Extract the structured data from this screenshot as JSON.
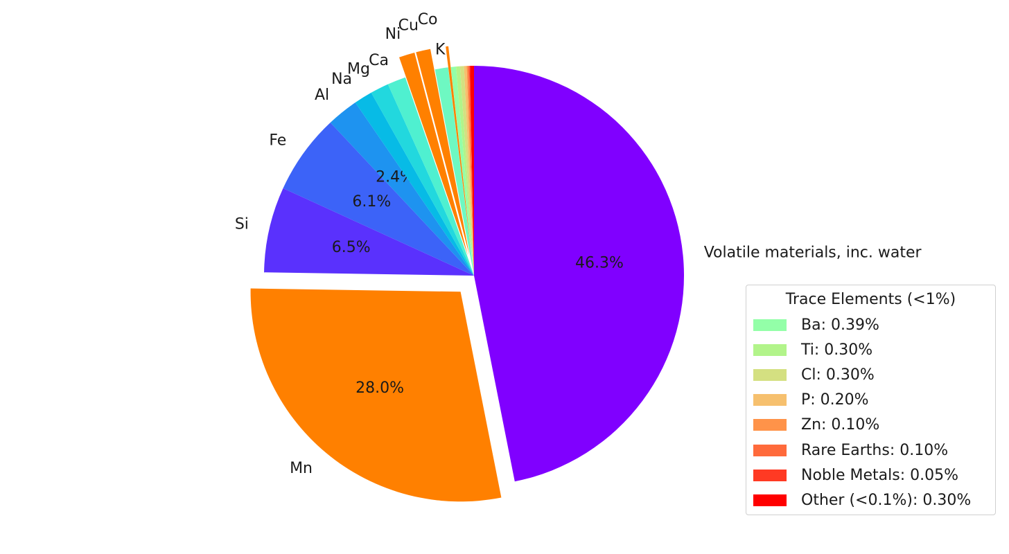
{
  "chart_data": {
    "type": "pie",
    "title": "",
    "start_angle_deg": 90,
    "direction": "clockwise",
    "slices": [
      {
        "label": "Volatile materials, inc. water",
        "value": 46.3,
        "pct_text": "46.3%",
        "color": "#8000ff",
        "explode": false
      },
      {
        "label": "Mn",
        "value": 28.0,
        "pct_text": "28.0%",
        "color": "#ff8000",
        "explode": true
      },
      {
        "label": "Si",
        "value": 6.5,
        "pct_text": "6.5%",
        "color": "#5a31fd",
        "explode": false
      },
      {
        "label": "Fe",
        "value": 6.1,
        "pct_text": "6.1%",
        "color": "#3c63f8",
        "explode": false
      },
      {
        "label": "Al",
        "value": 2.4,
        "pct_text": "2.4%",
        "color": "#1e93f0",
        "explode": false
      },
      {
        "label": "Na",
        "value": 1.4,
        "pct_text": "",
        "color": "#07bbe6",
        "explode": false
      },
      {
        "label": "Mg",
        "value": 1.4,
        "pct_text": "",
        "color": "#22d8de",
        "explode": false
      },
      {
        "label": "Ca",
        "value": 1.4,
        "pct_text": "",
        "color": "#4ff0d0",
        "explode": false
      },
      {
        "label": "Ni",
        "value": 1.2,
        "pct_text": "",
        "color": "#ff8000",
        "explode": true
      },
      {
        "label": "Cu",
        "value": 1.1,
        "pct_text": "",
        "color": "#ff8000",
        "explode": true
      },
      {
        "label": "K",
        "value": 1.0,
        "pct_text": "",
        "color": "#6ef8c2",
        "explode": false
      },
      {
        "label": "Co",
        "value": 0.2,
        "pct_text": "",
        "color": "#ff8000",
        "explode": true
      },
      {
        "label": "Ba",
        "value": 0.39,
        "pct_text": "",
        "color": "#93ffa8",
        "explode": false
      },
      {
        "label": "Ti",
        "value": 0.3,
        "pct_text": "",
        "color": "#b2f48a",
        "explode": false
      },
      {
        "label": "Cl",
        "value": 0.3,
        "pct_text": "",
        "color": "#d4e081",
        "explode": false
      },
      {
        "label": "P",
        "value": 0.2,
        "pct_text": "",
        "color": "#f6c06e",
        "explode": false
      },
      {
        "label": "Zn",
        "value": 0.1,
        "pct_text": "",
        "color": "#ff9349",
        "explode": false
      },
      {
        "label": "Rare Earths",
        "value": 0.1,
        "pct_text": "",
        "color": "#ff6a3b",
        "explode": false
      },
      {
        "label": "Noble Metals",
        "value": 0.05,
        "pct_text": "",
        "color": "#ff3a23",
        "explode": false
      },
      {
        "label": "Other (<0.1%)",
        "value": 0.3,
        "pct_text": "",
        "color": "#ff0000",
        "explode": false
      }
    ],
    "legend": {
      "title": "Trace Elements (<1%)",
      "placement": "lower-right",
      "entries": [
        {
          "label": "Ba: 0.39%",
          "color": "#93ffa8"
        },
        {
          "label": "Ti: 0.30%",
          "color": "#b2f48a"
        },
        {
          "label": "Cl: 0.30%",
          "color": "#d4e081"
        },
        {
          "label": "P: 0.20%",
          "color": "#f6c06e"
        },
        {
          "label": "Zn: 0.10%",
          "color": "#ff9349"
        },
        {
          "label": "Rare Earths: 0.10%",
          "color": "#ff6a3b"
        },
        {
          "label": "Noble Metals: 0.05%",
          "color": "#ff3a23"
        },
        {
          "label": "Other (<0.1%): 0.30%",
          "color": "#ff0000"
        }
      ]
    }
  }
}
